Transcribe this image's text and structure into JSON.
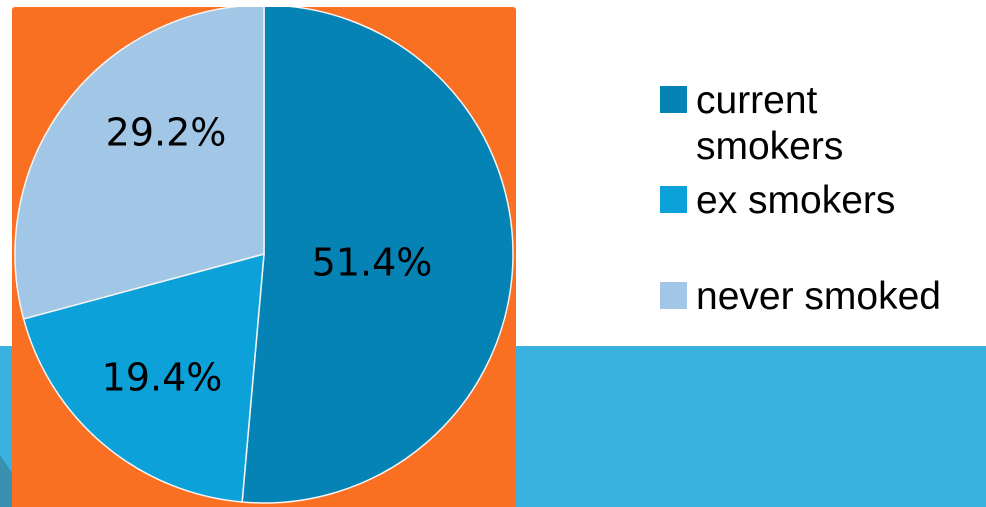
{
  "colors": {
    "panel": "#f97022",
    "band": "#3ab1de",
    "current_smokers": "#0683b5",
    "ex_smokers": "#0ca1d9",
    "never_smoked": "#a2c6e6",
    "slice_border": "#f5f5f5"
  },
  "chart_data": {
    "type": "pie",
    "title": "",
    "legend_position": "right",
    "slices": [
      {
        "name": "current smokers",
        "value": 51.4,
        "label": "51.4%",
        "color": "#0683b5"
      },
      {
        "name": "ex smokers",
        "value": 19.4,
        "label": "19.4%",
        "color": "#0ca1d9"
      },
      {
        "name": "never smoked",
        "value": 29.2,
        "label": "29.2%",
        "color": "#a2c6e6"
      }
    ],
    "legend": [
      "current smokers",
      "ex smokers",
      "never smoked"
    ]
  }
}
